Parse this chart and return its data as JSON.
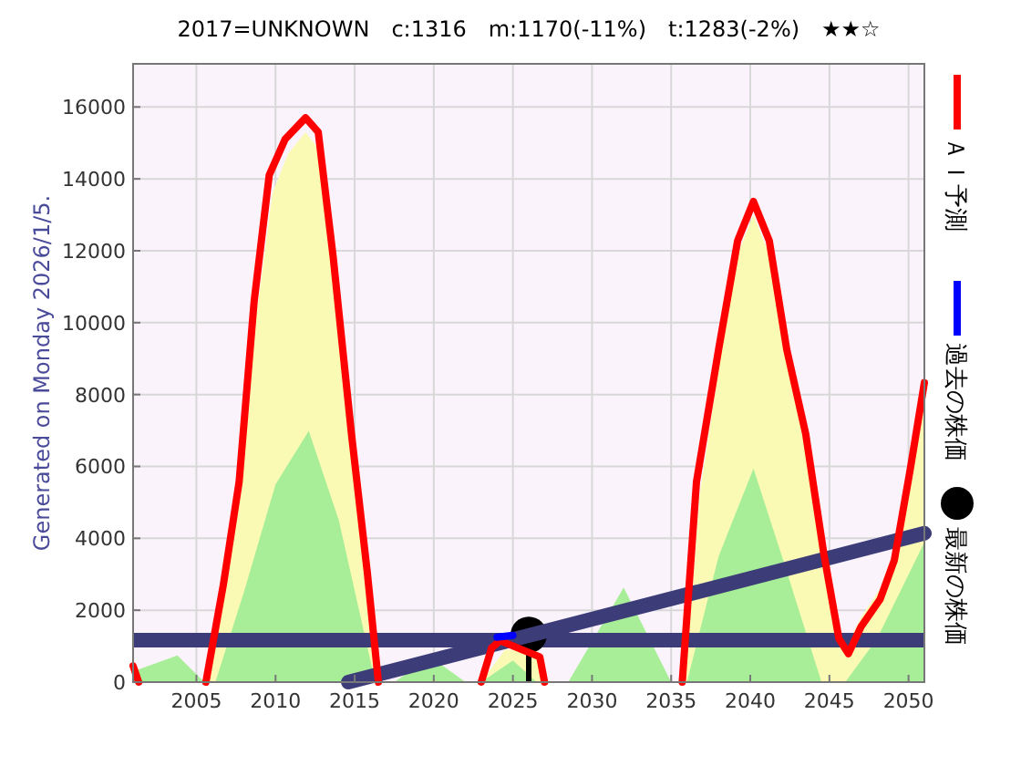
{
  "chart_data": {
    "type": "line",
    "title": "2017=UNKNOWN　c:1316　m:1170(-11%)　t:1283(-2%)　★★☆",
    "ylabel": "Generated on Monday 2026/1/5.",
    "xlim": [
      2001,
      2051
    ],
    "ylim": [
      0,
      17200
    ],
    "xticks": [
      2005,
      2010,
      2015,
      2020,
      2025,
      2030,
      2035,
      2040,
      2045,
      2050
    ],
    "yticks": [
      0,
      2000,
      4000,
      6000,
      8000,
      10000,
      12000,
      14000,
      16000
    ],
    "grid": true,
    "legend": "right",
    "line_style": "solid",
    "ref_lines": [
      {
        "axis": "y",
        "value": 1170,
        "color": "#3c3c78"
      }
    ],
    "series": [
      {
        "type": "area",
        "color": "#fafab4",
        "x": [
          2005.8,
          2006.9,
          2007.9,
          2008.8,
          2009.8,
          2010.8,
          2011.9,
          2012.6,
          2013.5,
          2014.6,
          2015.6,
          2016.3,
          2023,
          2024.5,
          2026.5,
          2027.2,
          2035.9,
          2036.8,
          2038.1,
          2039.3,
          2040.2,
          2041.1,
          2042.2,
          2043.4,
          2044.5,
          2045.6,
          2046.2,
          2047,
          2048.2,
          2049.1,
          2050.1,
          2051
        ],
        "values": [
          0,
          2700,
          5500,
          10200,
          13600,
          14700,
          15300,
          14900,
          11600,
          6900,
          3100,
          0,
          0,
          900,
          900,
          0,
          0,
          5200,
          9000,
          12000,
          13000,
          12000,
          9200,
          6900,
          3600,
          1500,
          1100,
          1800,
          2600,
          3700,
          6200,
          8000
        ]
      },
      {
        "type": "area",
        "color": "#a8ee98",
        "x": [
          2001,
          2003.8,
          2005.5,
          2006.2,
          2008,
          2010,
          2012.1,
          2014,
          2016.3,
          2017.5,
          2019.8,
          2022,
          2023,
          2025,
          2026.5,
          2028.5,
          2032,
          2035,
          2036,
          2038,
          2040.2,
          2042,
          2044.5,
          2046,
          2048,
          2051
        ],
        "values": [
          300,
          740,
          0,
          0,
          2500,
          5500,
          6990,
          4500,
          0,
          0,
          700,
          0,
          0,
          600,
          0,
          0,
          2630,
          0,
          0,
          3500,
          5940,
          3500,
          0,
          0,
          1200,
          3890
        ]
      },
      {
        "type": "line",
        "color": "#3c3c78",
        "x": [
          2014.6,
          2051
        ],
        "values": [
          0,
          4140
        ]
      },
      {
        "type": "line",
        "color": "#ff0000",
        "x": [
          2001,
          2001.35
        ],
        "values": [
          450,
          0
        ]
      },
      {
        "type": "line",
        "name": "ＡＩ予測",
        "color": "#ff0000",
        "x": [
          2005.6,
          2006.7,
          2007.7,
          2008.65,
          2009.6,
          2010.6,
          2011.9,
          2012.7,
          2013.65,
          2014.8,
          2015.8,
          2016.5
        ],
        "values": [
          0,
          2700,
          5570,
          10600,
          14100,
          15100,
          15700,
          15300,
          11800,
          6900,
          3050,
          0
        ]
      },
      {
        "type": "line",
        "color": "#ff0000",
        "x": [
          2023,
          2023.65,
          2024.2,
          2026.7,
          2027
        ],
        "values": [
          0,
          950,
          1150,
          700,
          0
        ]
      },
      {
        "type": "line",
        "color": "#ff0000",
        "x": [
          2035.7,
          2036.6,
          2038,
          2039.2,
          2040.2,
          2041.2,
          2042.3,
          2043.5,
          2044.65,
          2045.6,
          2046.2,
          2047,
          2048.2,
          2049.1,
          2050.1,
          2051
        ],
        "values": [
          0,
          5570,
          9260,
          12280,
          13370,
          12280,
          9260,
          6910,
          3560,
          1210,
          790,
          1540,
          2300,
          3390,
          5900,
          8330
        ]
      },
      {
        "type": "line",
        "name": "過去の株価",
        "color": "#0000ff",
        "x": [
          2024,
          2025
        ],
        "values": [
          1250,
          1300
        ]
      },
      {
        "type": "scatter",
        "name": "最新の株価",
        "color": "#000000",
        "marker": "circle",
        "x": [
          2026
        ],
        "values": [
          1316
        ],
        "errors": [
          [
            0,
            1316
          ]
        ]
      }
    ]
  }
}
